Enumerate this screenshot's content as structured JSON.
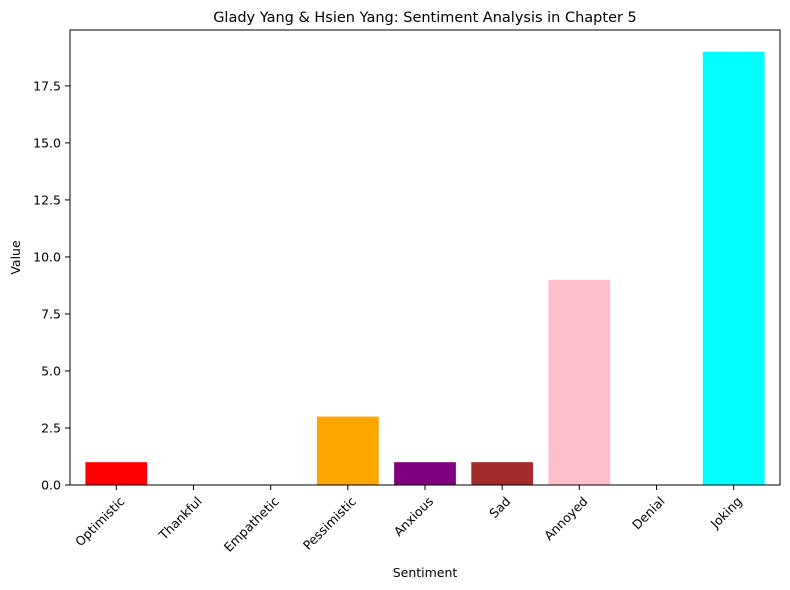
{
  "chart_data": {
    "type": "bar",
    "title": "Glady Yang & Hsien Yang: Sentiment Analysis in Chapter 5",
    "xlabel": "Sentiment",
    "ylabel": "Value",
    "categories": [
      "Optimistic",
      "Thankful",
      "Empathetic",
      "Pessimistic",
      "Anxious",
      "Sad",
      "Annoyed",
      "Denial",
      "Joking"
    ],
    "values": [
      1,
      0,
      0,
      3,
      1,
      1,
      9,
      0,
      19
    ],
    "colors": [
      "#ff0000",
      "#00ff00",
      "#0000ff",
      "#ffa500",
      "#800080",
      "#a52a2a",
      "#ffc0cb",
      "#808080",
      "#00ffff"
    ],
    "ylim": [
      0,
      19.95
    ],
    "yticks": [
      0.0,
      2.5,
      5.0,
      7.5,
      10.0,
      12.5,
      15.0,
      17.5
    ],
    "ytick_labels": [
      "0.0",
      "2.5",
      "5.0",
      "7.5",
      "10.0",
      "12.5",
      "15.0",
      "17.5"
    ],
    "grid": false,
    "legend": false
  }
}
